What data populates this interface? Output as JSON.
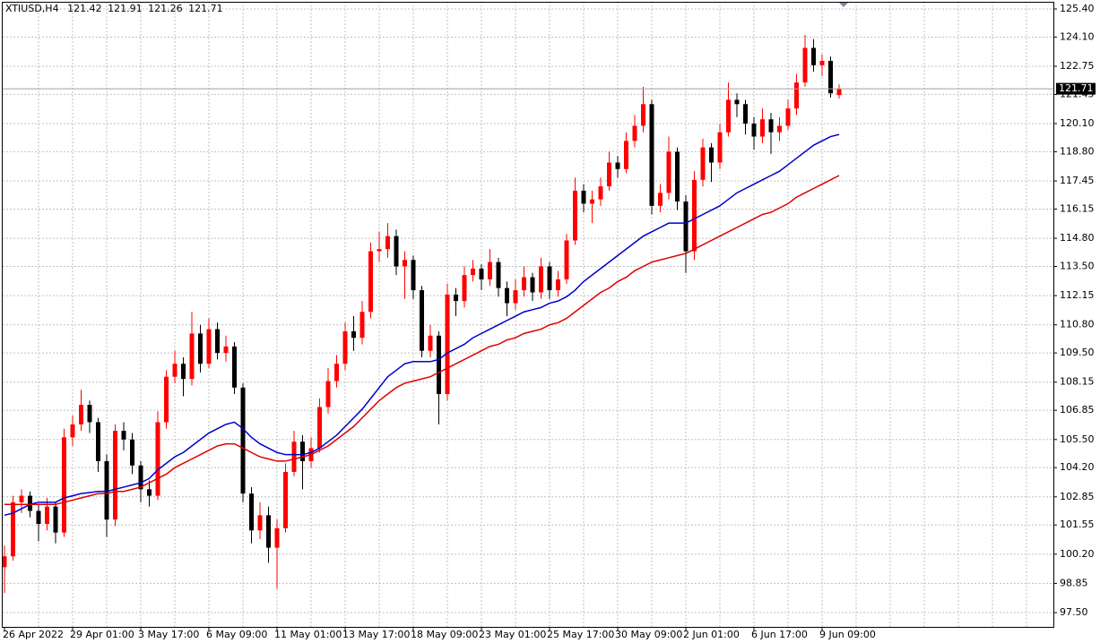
{
  "chart_data": {
    "type": "candlestick",
    "title": "XTIUSD,H4",
    "ohlc": [
      [
        99.6,
        100.6,
        98.4,
        100.1
      ],
      [
        100.1,
        102.9,
        99.9,
        102.6
      ],
      [
        102.6,
        103.2,
        102.1,
        102.9
      ],
      [
        102.9,
        103.1,
        101.9,
        102.2
      ],
      [
        102.2,
        102.5,
        100.8,
        101.6
      ],
      [
        101.6,
        102.8,
        101.3,
        102.4
      ],
      [
        102.4,
        102.6,
        100.7,
        101.2
      ],
      [
        101.2,
        106.0,
        101.0,
        105.6
      ],
      [
        105.6,
        106.6,
        105.2,
        106.2
      ],
      [
        106.2,
        107.8,
        105.9,
        107.1
      ],
      [
        107.1,
        107.3,
        105.8,
        106.3
      ],
      [
        106.3,
        106.5,
        104.0,
        104.5
      ],
      [
        104.5,
        104.8,
        101.0,
        101.8
      ],
      [
        101.8,
        106.2,
        101.5,
        105.9
      ],
      [
        105.9,
        106.3,
        105.0,
        105.5
      ],
      [
        105.5,
        105.8,
        103.9,
        104.3
      ],
      [
        104.3,
        104.5,
        102.6,
        103.2
      ],
      [
        103.2,
        103.6,
        102.4,
        102.9
      ],
      [
        102.9,
        106.8,
        102.7,
        106.3
      ],
      [
        106.3,
        108.7,
        106.0,
        108.4
      ],
      [
        108.4,
        109.6,
        108.1,
        109.0
      ],
      [
        109.0,
        109.3,
        107.5,
        108.3
      ],
      [
        108.3,
        111.4,
        108.0,
        110.4
      ],
      [
        110.4,
        110.8,
        108.6,
        109.0
      ],
      [
        109.0,
        111.1,
        108.8,
        110.6
      ],
      [
        110.6,
        110.9,
        109.2,
        109.5
      ],
      [
        109.5,
        110.3,
        109.1,
        109.8
      ],
      [
        109.8,
        110.0,
        107.6,
        107.9
      ],
      [
        107.9,
        108.1,
        102.6,
        103.0
      ],
      [
        103.0,
        103.3,
        100.7,
        101.3
      ],
      [
        101.3,
        102.6,
        100.9,
        102.0
      ],
      [
        102.0,
        102.4,
        99.8,
        100.5
      ],
      [
        100.5,
        101.8,
        98.6,
        101.4
      ],
      [
        101.4,
        104.4,
        101.2,
        104.0
      ],
      [
        104.0,
        105.9,
        103.8,
        105.4
      ],
      [
        105.4,
        105.7,
        103.2,
        104.5
      ],
      [
        104.5,
        105.6,
        104.2,
        105.1
      ],
      [
        105.1,
        107.4,
        104.9,
        107.0
      ],
      [
        107.0,
        108.8,
        106.7,
        108.2
      ],
      [
        108.2,
        109.4,
        107.9,
        109.0
      ],
      [
        109.0,
        110.9,
        108.7,
        110.5
      ],
      [
        110.5,
        111.2,
        109.6,
        110.2
      ],
      [
        110.2,
        111.9,
        109.9,
        111.4
      ],
      [
        111.4,
        114.6,
        111.1,
        114.2
      ],
      [
        114.2,
        115.1,
        113.7,
        114.3
      ],
      [
        114.3,
        115.5,
        113.9,
        114.9
      ],
      [
        114.9,
        115.2,
        113.1,
        113.5
      ],
      [
        113.5,
        114.2,
        112.0,
        113.8
      ],
      [
        113.8,
        114.0,
        112.0,
        112.4
      ],
      [
        112.4,
        112.6,
        109.3,
        109.6
      ],
      [
        109.6,
        110.8,
        109.3,
        110.3
      ],
      [
        110.3,
        110.5,
        106.2,
        107.6
      ],
      [
        107.6,
        112.7,
        107.3,
        112.2
      ],
      [
        112.2,
        112.5,
        111.2,
        111.9
      ],
      [
        111.9,
        113.5,
        111.6,
        113.1
      ],
      [
        113.1,
        113.8,
        112.8,
        113.4
      ],
      [
        113.4,
        113.6,
        112.4,
        112.9
      ],
      [
        112.9,
        114.3,
        112.6,
        113.7
      ],
      [
        113.7,
        113.9,
        112.1,
        112.5
      ],
      [
        112.5,
        112.8,
        111.2,
        111.8
      ],
      [
        111.8,
        112.9,
        111.5,
        112.4
      ],
      [
        112.4,
        113.5,
        112.1,
        113.0
      ],
      [
        113.0,
        113.2,
        111.9,
        112.3
      ],
      [
        112.3,
        113.9,
        112.0,
        113.5
      ],
      [
        113.5,
        113.7,
        112.0,
        112.4
      ],
      [
        112.4,
        113.3,
        112.1,
        112.9
      ],
      [
        112.9,
        115.0,
        112.7,
        114.7
      ],
      [
        114.7,
        117.6,
        114.5,
        117.0
      ],
      [
        117.0,
        117.3,
        116.0,
        116.4
      ],
      [
        116.4,
        117.0,
        115.5,
        116.6
      ],
      [
        116.6,
        117.6,
        116.3,
        117.2
      ],
      [
        117.2,
        118.8,
        117.0,
        118.3
      ],
      [
        118.3,
        118.6,
        117.6,
        118.0
      ],
      [
        118.0,
        119.7,
        117.8,
        119.3
      ],
      [
        119.3,
        120.5,
        119.0,
        120.0
      ],
      [
        120.0,
        121.8,
        119.7,
        121.0
      ],
      [
        121.0,
        121.2,
        115.9,
        116.3
      ],
      [
        116.3,
        117.3,
        116.0,
        116.9
      ],
      [
        116.9,
        119.5,
        116.6,
        118.8
      ],
      [
        118.8,
        119.0,
        116.1,
        116.5
      ],
      [
        116.5,
        116.8,
        113.2,
        114.2
      ],
      [
        114.2,
        117.9,
        113.8,
        117.5
      ],
      [
        117.5,
        119.4,
        117.2,
        119.0
      ],
      [
        119.0,
        119.2,
        117.4,
        118.3
      ],
      [
        118.3,
        120.1,
        118.0,
        119.7
      ],
      [
        119.7,
        122.0,
        119.5,
        121.2
      ],
      [
        121.2,
        121.5,
        120.4,
        121.0
      ],
      [
        121.0,
        121.2,
        119.6,
        120.1
      ],
      [
        120.1,
        120.4,
        118.9,
        119.5
      ],
      [
        119.5,
        120.8,
        119.2,
        120.3
      ],
      [
        120.3,
        120.6,
        118.7,
        119.7
      ],
      [
        119.7,
        120.4,
        119.3,
        120.0
      ],
      [
        120.0,
        121.2,
        119.8,
        120.8
      ],
      [
        120.8,
        122.4,
        120.5,
        122.0
      ],
      [
        122.0,
        124.2,
        121.8,
        123.6
      ],
      [
        123.6,
        124.0,
        122.5,
        122.8
      ],
      [
        122.8,
        123.3,
        122.3,
        123.0
      ],
      [
        123.0,
        123.2,
        121.3,
        121.5
      ],
      [
        121.42,
        121.91,
        121.26,
        121.71
      ]
    ],
    "categories": [
      "26 Apr 2022",
      null,
      null,
      null,
      null,
      null,
      null,
      null,
      "29 Apr 01:00",
      null,
      null,
      null,
      null,
      null,
      null,
      null,
      "3 May 17:00",
      null,
      null,
      null,
      null,
      null,
      null,
      null,
      "6 May 09:00",
      null,
      null,
      null,
      null,
      null,
      null,
      null,
      "11 May 01:00",
      null,
      null,
      null,
      null,
      null,
      null,
      null,
      "13 May 17:00",
      null,
      null,
      null,
      null,
      null,
      null,
      null,
      "18 May 09:00",
      null,
      null,
      null,
      null,
      null,
      null,
      null,
      "23 May 01:00",
      null,
      null,
      null,
      null,
      null,
      null,
      null,
      "25 May 17:00",
      null,
      null,
      null,
      null,
      null,
      null,
      null,
      "30 May 09:00",
      null,
      null,
      null,
      null,
      null,
      null,
      null,
      "2 Jun 01:00",
      null,
      null,
      null,
      null,
      null,
      null,
      null,
      "6 Jun 17:00",
      null,
      null,
      null,
      null,
      null,
      null,
      null,
      "9 Jun 09:00",
      null,
      null
    ],
    "moving_averages": [
      {
        "color": "#0000c8",
        "values": [
          102.0,
          102.1,
          102.3,
          102.5,
          102.6,
          102.6,
          102.6,
          102.8,
          102.9,
          103.0,
          103.05,
          103.1,
          103.1,
          103.2,
          103.3,
          103.4,
          103.5,
          103.7,
          104.1,
          104.4,
          104.7,
          104.9,
          105.2,
          105.5,
          105.8,
          106.0,
          106.2,
          106.3,
          106.0,
          105.6,
          105.3,
          105.1,
          104.9,
          104.8,
          104.8,
          104.8,
          104.9,
          105.1,
          105.4,
          105.7,
          106.1,
          106.5,
          106.9,
          107.4,
          107.9,
          108.4,
          108.7,
          109.0,
          109.1,
          109.1,
          109.1,
          109.2,
          109.5,
          109.7,
          109.9,
          110.2,
          110.4,
          110.6,
          110.8,
          111.0,
          111.2,
          111.4,
          111.5,
          111.6,
          111.8,
          111.9,
          112.1,
          112.4,
          112.8,
          113.1,
          113.4,
          113.7,
          114.0,
          114.3,
          114.6,
          114.9,
          115.1,
          115.3,
          115.5,
          115.5,
          115.5,
          115.7,
          115.9,
          116.1,
          116.3,
          116.6,
          116.9,
          117.1,
          117.3,
          117.5,
          117.7,
          117.9,
          118.2,
          118.5,
          118.8,
          119.1,
          119.3,
          119.5,
          119.6
        ]
      },
      {
        "color": "#e00000",
        "values": [
          102.5,
          102.5,
          102.5,
          102.5,
          102.5,
          102.5,
          102.5,
          102.6,
          102.7,
          102.8,
          102.9,
          103.0,
          103.0,
          103.1,
          103.1,
          103.2,
          103.3,
          103.5,
          103.7,
          103.9,
          104.2,
          104.4,
          104.6,
          104.8,
          105.0,
          105.2,
          105.3,
          105.3,
          105.1,
          104.9,
          104.7,
          104.6,
          104.5,
          104.5,
          104.6,
          104.7,
          104.8,
          105.0,
          105.2,
          105.5,
          105.8,
          106.1,
          106.5,
          106.9,
          107.3,
          107.6,
          107.9,
          108.1,
          108.2,
          108.3,
          108.4,
          108.6,
          108.8,
          109.0,
          109.2,
          109.4,
          109.6,
          109.8,
          109.9,
          110.1,
          110.2,
          110.4,
          110.5,
          110.6,
          110.8,
          110.9,
          111.1,
          111.4,
          111.7,
          112.0,
          112.3,
          112.5,
          112.8,
          113.0,
          113.3,
          113.5,
          113.7,
          113.8,
          113.9,
          114.0,
          114.1,
          114.3,
          114.5,
          114.7,
          114.9,
          115.1,
          115.3,
          115.5,
          115.7,
          115.9,
          116.0,
          116.2,
          116.4,
          116.7,
          116.9,
          117.1,
          117.3,
          117.5,
          117.7
        ]
      }
    ],
    "up_color": "#ff0000",
    "down_color": "#000000",
    "ylim": [
      96.84,
      125.73
    ],
    "yticks": [
      {
        "value": 125.4,
        "label": "125.40"
      },
      {
        "value": 124.1,
        "label": "124.10"
      },
      122.75,
      121.45,
      {
        "value": 120.1,
        "label": "120.10"
      },
      {
        "value": 118.8,
        "label": "118.80"
      },
      117.45,
      116.15,
      {
        "value": 114.8,
        "label": "114.80"
      },
      {
        "value": 113.5,
        "label": "113.50"
      },
      112.15,
      {
        "value": 110.8,
        "label": "110.80"
      },
      {
        "value": 109.5,
        "label": "109.50"
      },
      108.15,
      106.85,
      {
        "value": 105.5,
        "label": "105.50"
      },
      {
        "value": 104.2,
        "label": "104.20"
      },
      102.85,
      101.55,
      {
        "value": 100.2,
        "label": "100.20"
      },
      98.85,
      {
        "value": 97.5,
        "label": "97.50"
      }
    ],
    "grid": true
  }
}
